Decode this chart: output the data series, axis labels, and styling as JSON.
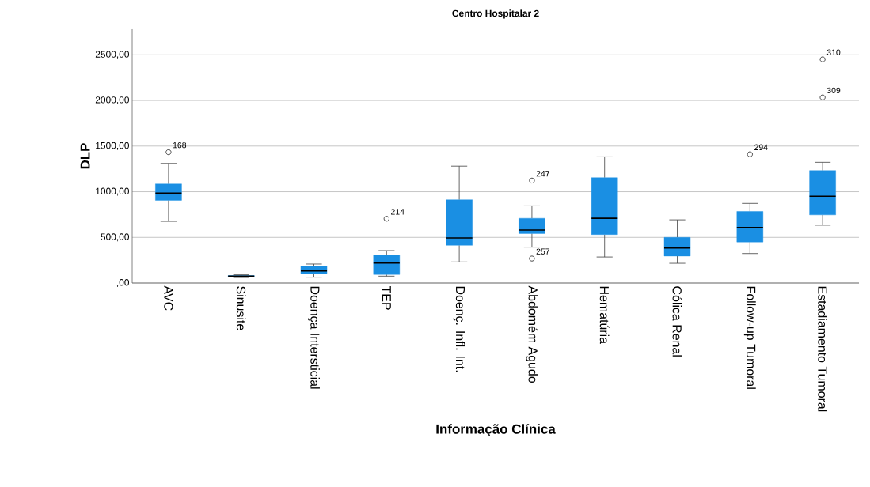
{
  "chart_data": {
    "type": "box",
    "title": "Centro Hospitalar 2",
    "xlabel": "Informação Clínica",
    "ylabel": "DLP",
    "categories": [
      "AVC",
      "Sinusite",
      "Doença Intersticial",
      "TEP",
      "Doenç. Infl. Int.",
      "Abdomém Agudo",
      "Hematúria",
      "Cólica Renal",
      "Follow-up Tumoral",
      "Estadiamento Tumoral"
    ],
    "color": "#1a8fe3",
    "boxes": [
      {
        "low": 675,
        "q1": 906,
        "median": 984,
        "q3": 1085,
        "high": 1310,
        "outliers": [
          1433
        ]
      },
      {
        "low": 60,
        "q1": 68,
        "median": 75,
        "q3": 82,
        "high": 90
      },
      {
        "low": 64,
        "q1": 104,
        "median": 133,
        "q3": 182,
        "high": 208
      },
      {
        "low": 75,
        "q1": 93,
        "median": 220,
        "q3": 306,
        "high": 355,
        "outliers": [
          704
        ]
      },
      {
        "low": 231,
        "q1": 413,
        "median": 493,
        "q3": 912,
        "high": 1280
      },
      {
        "low": 393,
        "q1": 542,
        "median": 580,
        "q3": 709,
        "high": 845,
        "outliers": [
          1122,
          268
        ]
      },
      {
        "low": 285,
        "q1": 531,
        "median": 709,
        "q3": 1154,
        "high": 1382
      },
      {
        "low": 216,
        "q1": 295,
        "median": 384,
        "q3": 500,
        "high": 692
      },
      {
        "low": 323,
        "q1": 449,
        "median": 608,
        "q3": 784,
        "high": 872,
        "outliers": [
          1410
        ]
      },
      {
        "low": 633,
        "q1": 746,
        "median": 951,
        "q3": 1232,
        "high": 1322,
        "outliers": [
          2450,
          2033
        ]
      }
    ],
    "ylim": [
      0,
      2780
    ],
    "yticks": [
      {
        "value": 0,
        "label": ",00"
      },
      {
        "value": 500,
        "label": "500,00"
      },
      {
        "value": 1000,
        "label": "1000,00"
      },
      {
        "value": 1500,
        "label": "1500,00"
      },
      {
        "value": 2000,
        "label": "2000,00"
      },
      {
        "value": 2500,
        "label": "2500,00"
      }
    ],
    "grid": "y",
    "annotations": [
      "168",
      "214",
      "247",
      "257",
      "294",
      "310",
      "309"
    ]
  }
}
